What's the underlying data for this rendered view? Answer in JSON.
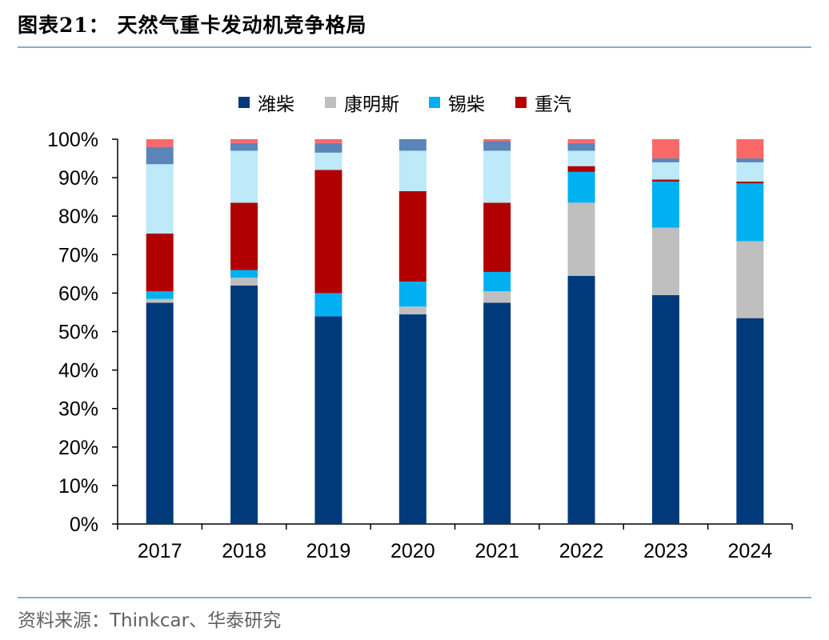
{
  "header": {
    "title": "图表21：  天然气重卡发动机竞争格局"
  },
  "footer": {
    "source": "资料来源：Thinkcar、华泰研究"
  },
  "chart_data": {
    "type": "bar",
    "stacked": true,
    "percent": true,
    "categories": [
      "2017",
      "2018",
      "2019",
      "2020",
      "2021",
      "2022",
      "2023",
      "2024"
    ],
    "series": [
      {
        "name": "潍柴",
        "color": "#003a7a",
        "values": [
          57.5,
          62.0,
          54.0,
          54.5,
          57.5,
          64.5,
          59.5,
          53.5
        ]
      },
      {
        "name": "康明斯",
        "color": "#bfbfbf",
        "values": [
          1.0,
          2.0,
          0.0,
          2.0,
          3.0,
          19.0,
          17.5,
          20.0
        ]
      },
      {
        "name": "锡柴",
        "color": "#00b0f0",
        "values": [
          2.0,
          2.0,
          6.0,
          6.5,
          5.0,
          8.0,
          12.0,
          15.0
        ]
      },
      {
        "name": "重汽",
        "color": "#b00000",
        "values": [
          15.0,
          17.5,
          32.0,
          23.5,
          18.0,
          1.5,
          0.5,
          0.5
        ]
      },
      {
        "name": "",
        "color": "#bde9f9",
        "values": [
          18.0,
          13.5,
          4.5,
          10.5,
          13.5,
          4.0,
          4.5,
          5.0
        ]
      },
      {
        "name": "",
        "color": "#5b85b8",
        "values": [
          4.5,
          2.0,
          2.5,
          3.0,
          2.5,
          2.0,
          1.0,
          1.0
        ]
      },
      {
        "name": "",
        "color": "#fa6868",
        "values": [
          2.0,
          1.0,
          1.0,
          0.0,
          0.5,
          1.0,
          5.0,
          5.0
        ]
      }
    ],
    "ylim": [
      0,
      100
    ],
    "yticks": [
      "0%",
      "10%",
      "20%",
      "30%",
      "40%",
      "50%",
      "60%",
      "70%",
      "80%",
      "90%",
      "100%"
    ],
    "legend_position": "top-center",
    "grid": false
  }
}
